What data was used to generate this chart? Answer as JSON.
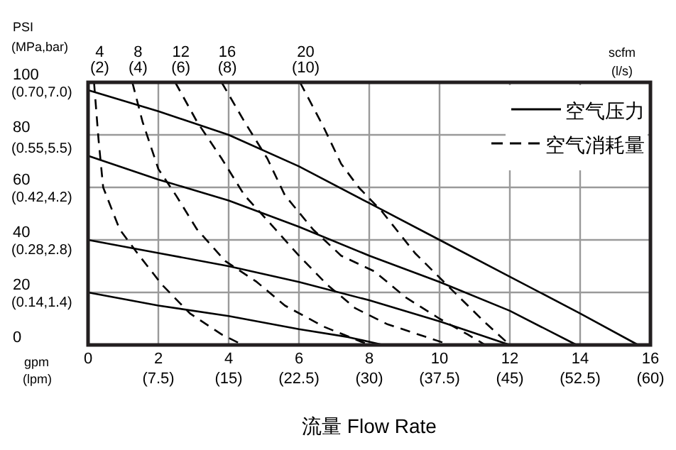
{
  "chart_data": {
    "type": "line",
    "xlabel": "流量 Flow Rate",
    "ylabel": "PSI",
    "y2label": "(MPa,bar)",
    "x2label": "(lpm)",
    "xlim": [
      0,
      16
    ],
    "ylim": [
      0,
      100
    ],
    "x2lim": [
      0,
      60
    ],
    "y2lim": [
      0,
      0.7
    ],
    "y3lim": [
      0,
      7.0
    ],
    "xticks": [
      0,
      2,
      4,
      6,
      8,
      10,
      12,
      14,
      16
    ],
    "x2ticks": [
      {
        "value": 7.5,
        "label": "(7.5)"
      },
      {
        "value": 15,
        "label": "(15)"
      },
      {
        "value": 22.5,
        "label": "(22.5)"
      },
      {
        "value": 30,
        "label": "(30)"
      },
      {
        "value": 37.5,
        "label": "(37.5)"
      },
      {
        "value": 45,
        "label": "(45)"
      },
      {
        "value": 52.5,
        "label": "(52.5)"
      },
      {
        "value": 60,
        "label": "(60)"
      }
    ],
    "yticks": [
      0,
      20,
      40,
      60,
      80,
      100
    ],
    "y2ticks": [
      {
        "value": 0.14,
        "label": "(0.14,"
      },
      {
        "value": 0.28,
        "label": "(0.28,"
      },
      {
        "value": 0.42,
        "label": "(0.42,"
      },
      {
        "value": 0.55,
        "label": "(0.55,"
      },
      {
        "value": 0.7,
        "label": "(0.70,"
      }
    ],
    "y3ticks": [
      {
        "value": 1.4,
        "label": "1.4)"
      },
      {
        "value": 2.8,
        "label": "2.8)"
      },
      {
        "value": 4.2,
        "label": "4.2)"
      },
      {
        "value": 5.5,
        "label": "5.5)"
      },
      {
        "value": 7.0,
        "label": "7.0)"
      }
    ],
    "grid": true,
    "legend": "top right",
    "annotations": [
      "gpm",
      "scfm (l/s)",
      {
        "text": "4 (2)",
        "x": 0.17,
        "y": 100
      },
      {
        "text": "8 (4)",
        "x": 1.26,
        "y": 100
      },
      {
        "text": "12 (6)",
        "x": 2.48,
        "y": 100
      },
      {
        "text": "16 (8)",
        "x": 3.8,
        "y": 100
      },
      {
        "text": "20 (10)",
        "x": 6.03,
        "y": 100
      }
    ],
    "series": [
      {
        "name": "空气压力",
        "color": "#000000",
        "line_style": "solid",
        "x": [
          0,
          2,
          4,
          6,
          8,
          10,
          12,
          14,
          15.65
        ],
        "values": [
          97,
          89,
          80,
          68,
          54,
          40,
          26,
          12,
          0
        ]
      },
      {
        "color": "#000000",
        "line_style": "solid",
        "x": [
          0,
          2,
          4,
          6,
          8,
          10,
          12,
          13.9
        ],
        "values": [
          72,
          63,
          55,
          45,
          34,
          24,
          13,
          0
        ]
      },
      {
        "color": "#000000",
        "line_style": "solid",
        "x": [
          0,
          2,
          4,
          6,
          8,
          10,
          12
        ],
        "values": [
          40,
          35,
          30,
          24,
          17,
          9,
          0
        ]
      },
      {
        "color": "#000000",
        "line_style": "solid",
        "x": [
          0,
          2,
          4,
          6,
          7.4,
          8.4
        ],
        "values": [
          20,
          15,
          11,
          6,
          3,
          0
        ]
      },
      {
        "name": "空气消耗量",
        "color": "#000000",
        "line_style": "dashed",
        "x": [
          0.17,
          0.3,
          0.43,
          0.9,
          1.4,
          2.1,
          2.9,
          3.8,
          4.4
        ],
        "values": [
          100,
          78,
          60,
          44,
          35,
          23,
          12,
          4,
          0
        ]
      },
      {
        "color": "#000000",
        "line_style": "dashed",
        "x": [
          1.26,
          1.55,
          2,
          2.5,
          3.1,
          3.9,
          4.8,
          5.6,
          6.7,
          8
        ],
        "values": [
          100,
          85,
          67,
          57,
          44,
          32,
          24,
          15,
          7,
          0
        ]
      },
      {
        "color": "#000000",
        "line_style": "dashed",
        "x": [
          2.48,
          3.1,
          3.8,
          4.45,
          5.2,
          6,
          6.8,
          7.6,
          8.5,
          9.4,
          10.3
        ],
        "values": [
          100,
          85,
          71,
          57,
          46,
          34,
          23,
          14,
          8,
          4,
          0
        ]
      },
      {
        "color": "#000000",
        "line_style": "dashed",
        "x": [
          3.8,
          4.45,
          5.1,
          5.6,
          6.4,
          7.2,
          8.15,
          9.05,
          10,
          10.8,
          11.3
        ],
        "values": [
          100,
          85,
          71,
          57,
          44,
          34,
          28,
          18,
          10,
          4,
          0
        ]
      },
      {
        "color": "#000000",
        "line_style": "dashed",
        "x": [
          6.03,
          6.7,
          7.2,
          7.7,
          8.35,
          9.3,
          10.5,
          11.3,
          12
        ],
        "values": [
          100,
          83,
          69,
          60,
          51,
          35,
          19,
          8.5,
          0
        ]
      }
    ]
  }
}
